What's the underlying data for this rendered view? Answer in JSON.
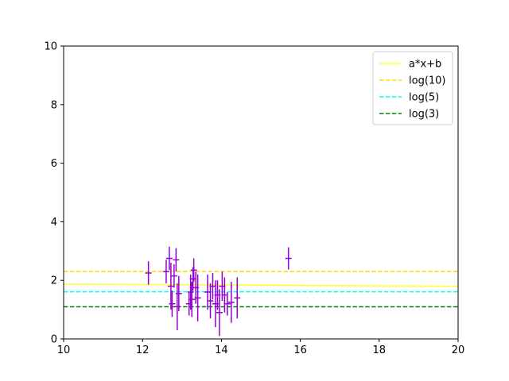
{
  "chart_data": {
    "type": "scatter",
    "title": "",
    "xlabel": "",
    "ylabel": "",
    "xlim": [
      10,
      20
    ],
    "ylim": [
      0,
      10
    ],
    "xticks": [
      10,
      12,
      14,
      16,
      18,
      20
    ],
    "yticks": [
      0,
      2,
      4,
      6,
      8,
      10
    ],
    "grid": false,
    "legend_position": "top-right",
    "errorbar_color": "#9400d3",
    "series": [
      {
        "name": "a*x+b",
        "kind": "line",
        "style": "solid",
        "color": "#ffff33",
        "x": [
          10,
          20
        ],
        "y": [
          1.87,
          1.8
        ]
      },
      {
        "name": "log(10)",
        "kind": "line",
        "style": "dashed",
        "color": "#ffd700",
        "x": [
          10,
          20
        ],
        "y": [
          2.303,
          2.303
        ]
      },
      {
        "name": "log(5)",
        "kind": "line",
        "style": "dashed",
        "color": "#00ffff",
        "x": [
          10,
          20
        ],
        "y": [
          1.609,
          1.609
        ]
      },
      {
        "name": "log(3)",
        "kind": "line",
        "style": "dashed",
        "color": "#008000",
        "x": [
          10,
          20
        ],
        "y": [
          1.099,
          1.099
        ]
      }
    ],
    "points": [
      {
        "x": 12.15,
        "y": 2.25,
        "yerr": 0.4,
        "xerr": 0.08
      },
      {
        "x": 12.6,
        "y": 2.3,
        "yerr": 0.4,
        "xerr": 0.08
      },
      {
        "x": 12.68,
        "y": 2.75,
        "yerr": 0.4,
        "xerr": 0.08
      },
      {
        "x": 12.72,
        "y": 1.8,
        "yerr": 0.8,
        "xerr": 0.08
      },
      {
        "x": 12.75,
        "y": 1.2,
        "yerr": 0.45,
        "xerr": 0.08
      },
      {
        "x": 12.8,
        "y": 2.15,
        "yerr": 0.4,
        "xerr": 0.08
      },
      {
        "x": 12.85,
        "y": 2.7,
        "yerr": 0.4,
        "xerr": 0.08
      },
      {
        "x": 12.88,
        "y": 1.1,
        "yerr": 0.8,
        "xerr": 0.08
      },
      {
        "x": 12.92,
        "y": 1.55,
        "yerr": 0.6,
        "xerr": 0.08
      },
      {
        "x": 13.18,
        "y": 1.2,
        "yerr": 0.4,
        "xerr": 0.08
      },
      {
        "x": 13.22,
        "y": 1.6,
        "yerr": 0.6,
        "xerr": 0.08
      },
      {
        "x": 13.25,
        "y": 1.35,
        "yerr": 0.6,
        "xerr": 0.08
      },
      {
        "x": 13.28,
        "y": 2.05,
        "yerr": 0.4,
        "xerr": 0.08
      },
      {
        "x": 13.3,
        "y": 2.35,
        "yerr": 0.4,
        "xerr": 0.08
      },
      {
        "x": 13.35,
        "y": 1.75,
        "yerr": 0.55,
        "xerr": 0.08
      },
      {
        "x": 13.4,
        "y": 1.4,
        "yerr": 0.8,
        "xerr": 0.08
      },
      {
        "x": 13.65,
        "y": 1.6,
        "yerr": 0.6,
        "xerr": 0.08
      },
      {
        "x": 13.72,
        "y": 1.3,
        "yerr": 0.6,
        "xerr": 0.08
      },
      {
        "x": 13.78,
        "y": 1.8,
        "yerr": 0.45,
        "xerr": 0.08
      },
      {
        "x": 13.85,
        "y": 1.2,
        "yerr": 0.8,
        "xerr": 0.08
      },
      {
        "x": 13.9,
        "y": 1.5,
        "yerr": 0.5,
        "xerr": 0.08
      },
      {
        "x": 13.95,
        "y": 0.9,
        "yerr": 0.8,
        "xerr": 0.08
      },
      {
        "x": 14.02,
        "y": 1.8,
        "yerr": 0.5,
        "xerr": 0.08
      },
      {
        "x": 14.08,
        "y": 1.5,
        "yerr": 0.6,
        "xerr": 0.08
      },
      {
        "x": 14.15,
        "y": 1.2,
        "yerr": 0.4,
        "xerr": 0.08
      },
      {
        "x": 14.25,
        "y": 1.25,
        "yerr": 0.7,
        "xerr": 0.08
      },
      {
        "x": 14.4,
        "y": 1.4,
        "yerr": 0.7,
        "xerr": 0.08
      },
      {
        "x": 15.7,
        "y": 2.75,
        "yerr": 0.38,
        "xerr": 0.08
      }
    ]
  }
}
